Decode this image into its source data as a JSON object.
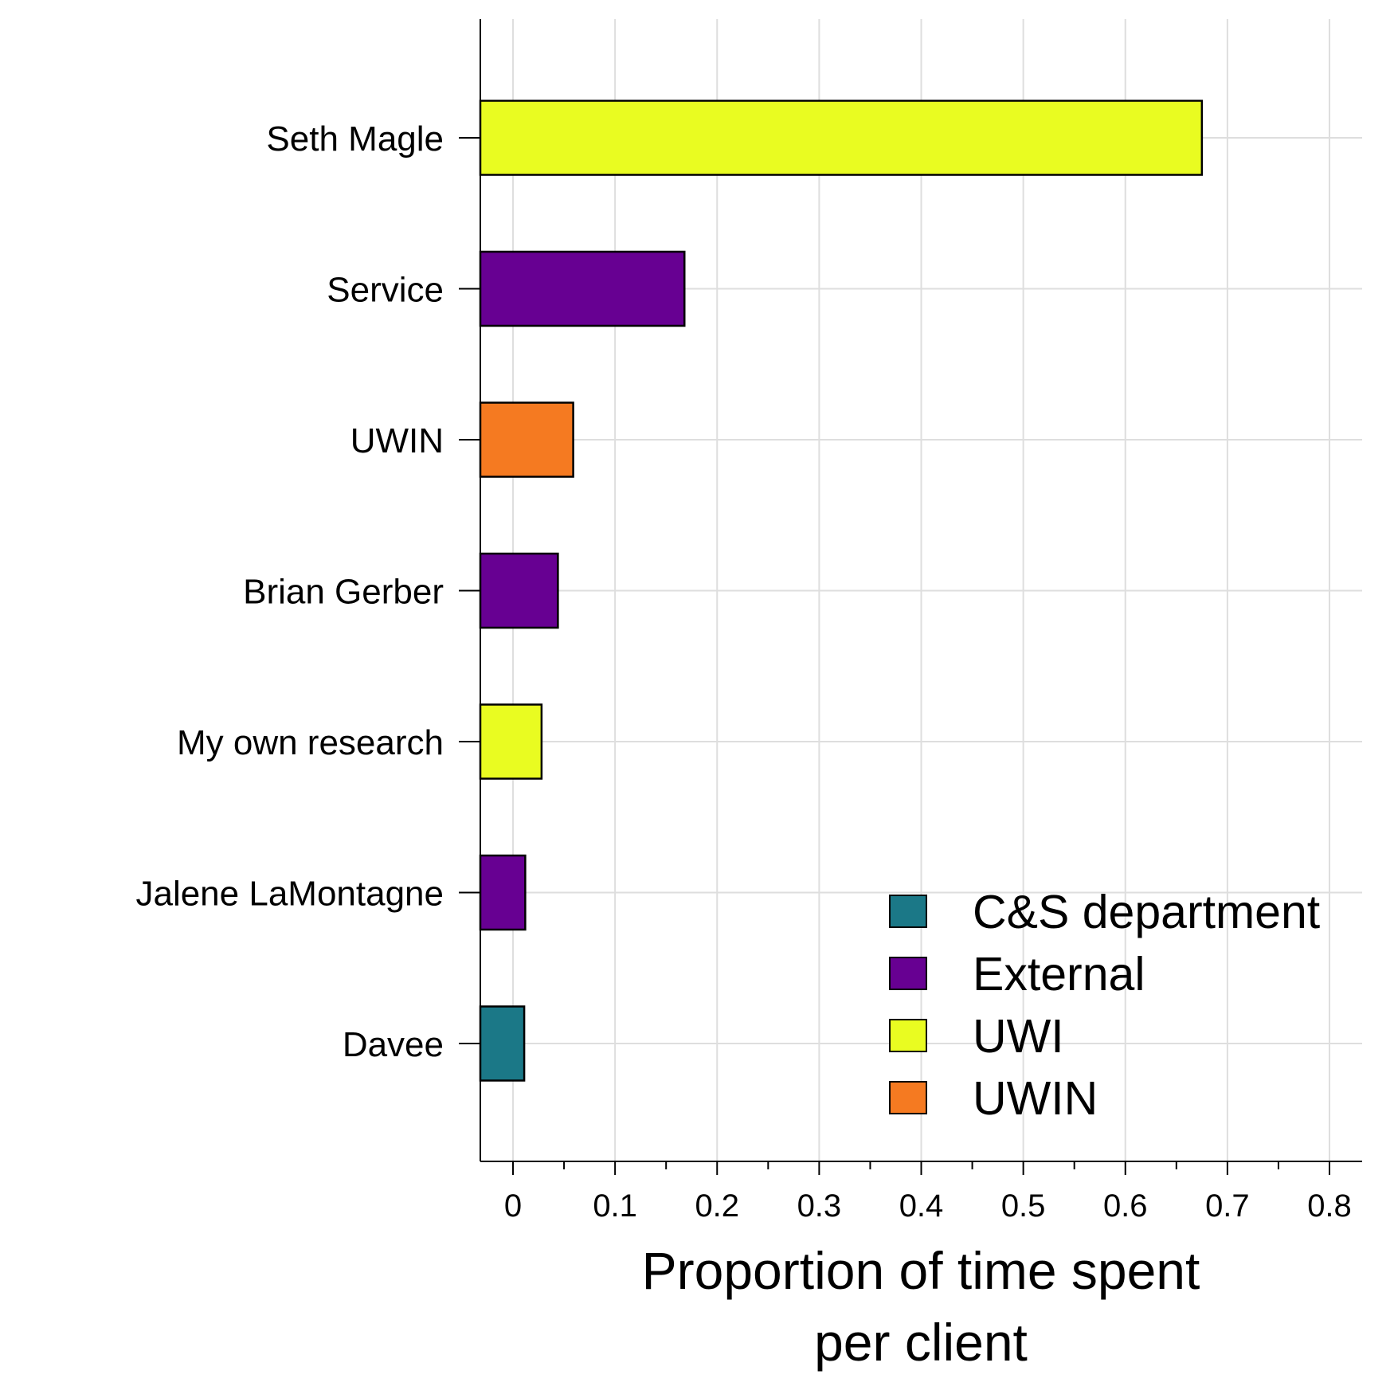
{
  "chart_data": {
    "type": "bar",
    "orientation": "horizontal",
    "categories": [
      "Seth Magle",
      "Service",
      "UWIN",
      "Brian Gerber",
      "My own research",
      "Jalene LaMontagne",
      "Davee"
    ],
    "values": [
      0.675,
      0.168,
      0.059,
      0.044,
      0.028,
      0.012,
      0.011
    ],
    "groups": [
      "UWI",
      "External",
      "UWIN",
      "External",
      "UWI",
      "External",
      "C&S department"
    ],
    "legend": [
      {
        "label": "C&S department",
        "color": "#1b7887"
      },
      {
        "label": "External",
        "color": "#670092"
      },
      {
        "label": "UWI",
        "color": "#e9fc21"
      },
      {
        "label": "UWIN",
        "color": "#f57a21"
      }
    ],
    "legend_position": "bottom-right",
    "xlabel_lines": [
      "Proportion of time spent",
      "per client"
    ],
    "ylabel": "",
    "xlim": [
      -0.032,
      0.832
    ],
    "xticks": [
      0,
      0.1,
      0.2,
      0.3,
      0.4,
      0.5,
      0.6,
      0.7,
      0.8
    ],
    "xtick_labels": [
      "0",
      "0.1",
      "0.2",
      "0.3",
      "0.4",
      "0.5",
      "0.6",
      "0.7",
      "0.8"
    ],
    "minor_xticks": [
      0.05,
      0.15,
      0.25,
      0.35,
      0.45,
      0.55,
      0.65,
      0.75
    ],
    "grid": true
  }
}
